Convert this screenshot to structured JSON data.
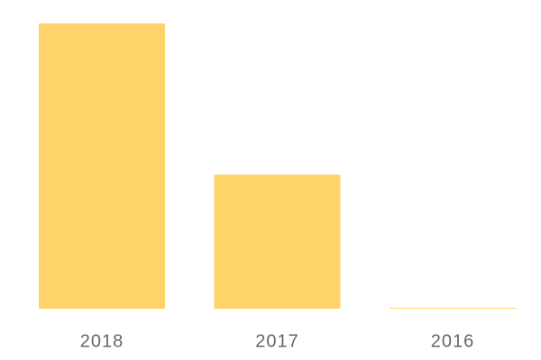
{
  "chart_data": {
    "type": "bar",
    "categories": [
      "2018",
      "2017",
      "2016"
    ],
    "values": [
      100,
      47,
      0.3
    ],
    "color": "#fed46a"
  }
}
